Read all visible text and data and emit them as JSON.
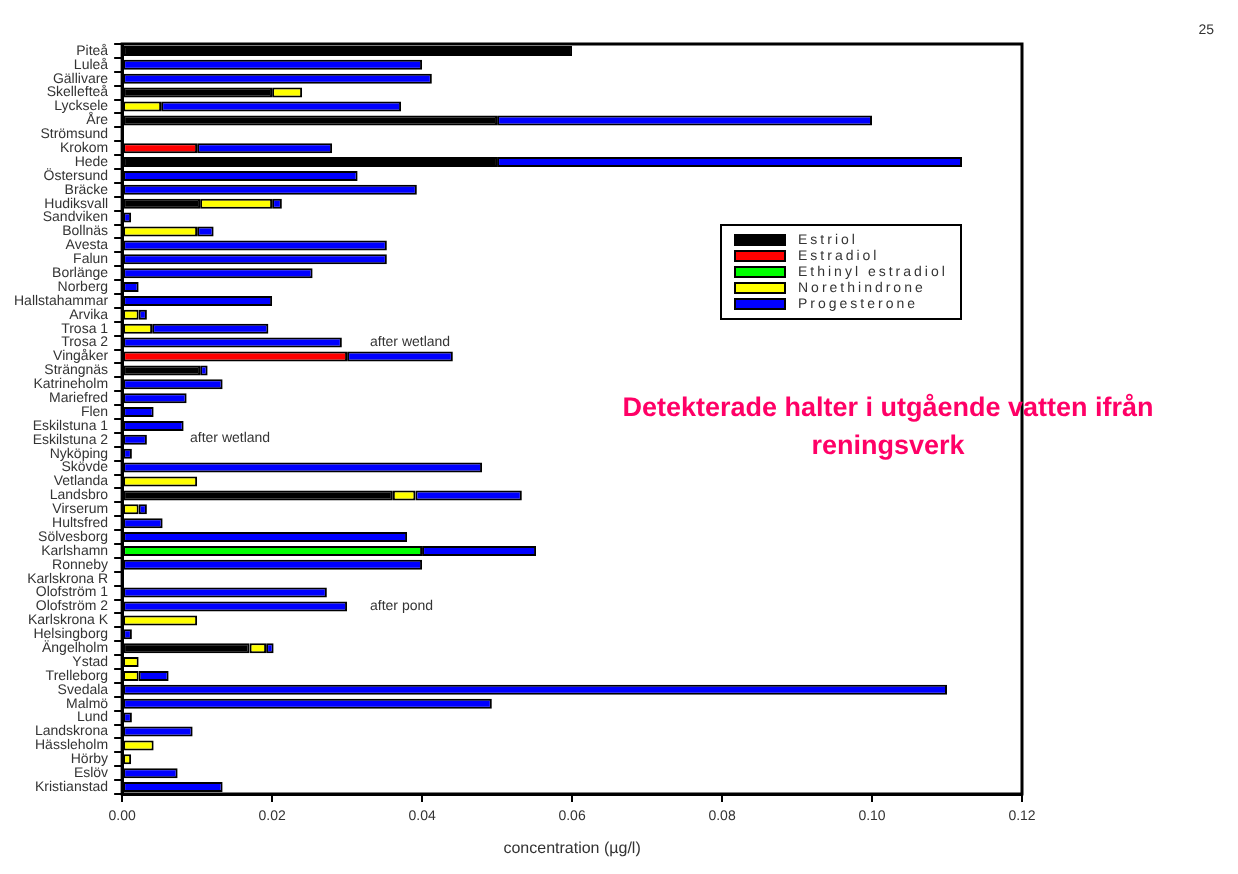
{
  "chart_data": {
    "type": "bar",
    "orientation": "horizontal",
    "stacked": true,
    "title": "Detekterade halter i utgående vatten ifrån reningsverk",
    "xlabel": "concentration (µg/l)",
    "categories": [
      "Piteå",
      "Luleå",
      "Gällivare",
      "Skellefteå",
      "Lycksele",
      "Åre",
      "Strömsund",
      "Krokom",
      "Hede",
      "Östersund",
      "Bräcke",
      "Hudiksvall",
      "Sandviken",
      "Bollnäs",
      "Avesta",
      "Falun",
      "Borlänge",
      "Norberg",
      "Hallstahammar",
      "Arvika",
      "Trosa 1",
      "Trosa 2",
      "Vingåker",
      "Strängnäs",
      "Katrineholm",
      "Mariefred",
      "Flen",
      "Eskilstuna 1",
      "Eskilstuna 2",
      "Nyköping",
      "Skövde",
      "Vetlanda",
      "Landsbro",
      "Virserum",
      "Hultsfred",
      "Sölvesborg",
      "Karlshamn",
      "Ronneby",
      "Karlskrona R",
      "Olofström 1",
      "Olofström 2",
      "Karlskrona K",
      "Helsingborg",
      "Ängelholm",
      "Ystad",
      "Trelleborg",
      "Svedala",
      "Malmö",
      "Lund",
      "Landskrona",
      "Hässleholm",
      "Hörby",
      "Eslöv",
      "Kristianstad"
    ],
    "series": [
      {
        "name": "Estriol",
        "color": "#000000",
        "values": [
          0.06,
          null,
          null,
          0.02,
          null,
          0.05,
          null,
          null,
          0.05,
          null,
          null,
          0.0104,
          null,
          null,
          null,
          null,
          null,
          null,
          null,
          null,
          null,
          null,
          null,
          0.0104,
          null,
          null,
          null,
          null,
          null,
          null,
          null,
          null,
          0.0361,
          null,
          null,
          null,
          null,
          null,
          null,
          null,
          null,
          null,
          null,
          0.017,
          null,
          null,
          null,
          null,
          null,
          null,
          null,
          null,
          null,
          null
        ]
      },
      {
        "name": "Estradiol",
        "color": "#ff0000",
        "values": [
          null,
          null,
          null,
          null,
          null,
          null,
          null,
          0.01,
          null,
          null,
          null,
          null,
          null,
          null,
          null,
          null,
          null,
          null,
          null,
          null,
          null,
          null,
          0.03,
          null,
          null,
          null,
          null,
          null,
          null,
          null,
          null,
          null,
          null,
          null,
          null,
          null,
          null,
          null,
          null,
          null,
          null,
          null,
          null,
          null,
          null,
          null,
          null,
          null,
          null,
          null,
          null,
          null,
          null,
          null
        ]
      },
      {
        "name": "Ethinyl estradiol",
        "color": "#00ff00",
        "values": [
          null,
          null,
          null,
          null,
          null,
          null,
          null,
          null,
          null,
          null,
          null,
          null,
          null,
          null,
          null,
          null,
          null,
          null,
          null,
          null,
          null,
          null,
          null,
          null,
          null,
          null,
          null,
          null,
          null,
          null,
          null,
          null,
          null,
          null,
          null,
          null,
          0.04,
          null,
          null,
          null,
          null,
          null,
          null,
          null,
          null,
          null,
          null,
          null,
          null,
          null,
          null,
          null,
          null,
          null
        ]
      },
      {
        "name": "Norethindrone",
        "color": "#ffff00",
        "values": [
          null,
          null,
          null,
          0.004,
          0.0052,
          null,
          null,
          null,
          null,
          null,
          null,
          0.0096,
          null,
          0.01,
          null,
          null,
          null,
          null,
          null,
          0.0022,
          0.004,
          null,
          null,
          null,
          null,
          null,
          null,
          null,
          null,
          null,
          null,
          0.01,
          0.003,
          0.0022,
          null,
          null,
          null,
          null,
          null,
          null,
          null,
          0.01,
          null,
          0.0022,
          0.0022,
          0.0022,
          null,
          null,
          null,
          null,
          0.0042,
          0.0012,
          null,
          null
        ]
      },
      {
        "name": "Progesterone",
        "color": "#0000ff",
        "values": [
          null,
          0.04,
          0.0413,
          null,
          0.032,
          0.05,
          null,
          0.018,
          0.062,
          0.0314,
          0.0393,
          0.0013,
          0.0012,
          0.0022,
          0.0353,
          0.0353,
          0.0254,
          0.0022,
          0.02,
          0.0011,
          0.0155,
          0.0293,
          0.0141,
          0.001,
          0.0134,
          0.0086,
          0.0042,
          0.0082,
          0.0033,
          0.0013,
          0.048,
          null,
          0.0142,
          0.0011,
          0.0054,
          0.038,
          0.0152,
          0.04,
          null,
          0.0273,
          0.03,
          null,
          0.0013,
          0.001,
          null,
          0.004,
          0.11,
          0.0493,
          0.0013,
          0.0094,
          null,
          null,
          0.0074,
          0.0134
        ]
      }
    ],
    "xlim": [
      0,
      0.12
    ],
    "xticks": [
      {
        "value": 0,
        "label": "0.00"
      },
      {
        "value": 0.02,
        "label": "0.02"
      },
      {
        "value": 0.04,
        "label": "0.04"
      },
      {
        "value": 0.06,
        "label": "0.06"
      },
      {
        "value": 0.08,
        "label": "0.08"
      },
      {
        "value": 0.1,
        "label": "0.10"
      },
      {
        "value": 0.12,
        "label": "0.12"
      }
    ],
    "legend": "top right",
    "annotations": [
      "after wetland",
      "after wetland",
      "after pond",
      "25"
    ]
  }
}
